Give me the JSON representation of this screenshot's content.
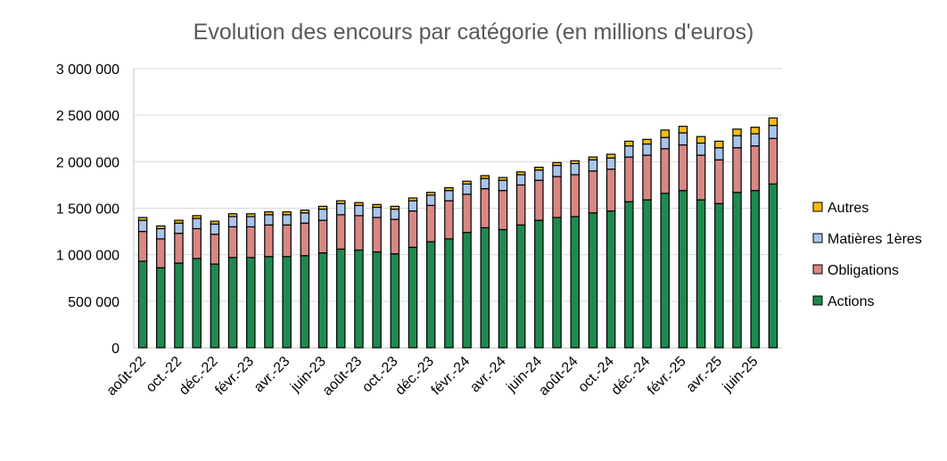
{
  "chart_data": {
    "type": "bar",
    "stacked": true,
    "title": "Evolution des encours par catégorie (en millions d'euros)",
    "xlabel": "",
    "ylabel": "",
    "ylim": [
      0,
      3000000
    ],
    "y_ticks": [
      0,
      500000,
      1000000,
      1500000,
      2000000,
      2500000,
      3000000
    ],
    "y_tick_labels": [
      "0",
      "500 000",
      "1 000 000",
      "1 500 000",
      "2 000 000",
      "2 500 000",
      "3 000 000"
    ],
    "grid": true,
    "legend_position": "right",
    "categories": [
      "août-22",
      "sept.-22",
      "oct.-22",
      "nov.-22",
      "déc.-22",
      "janv.-23",
      "févr.-23",
      "mars-23",
      "avr.-23",
      "mai-23",
      "juin-23",
      "juil.-23",
      "août-23",
      "sept.-23",
      "oct.-23",
      "nov.-23",
      "déc.-23",
      "janv.-24",
      "févr.-24",
      "mars-24",
      "avr.-24",
      "mai-24",
      "juin-24",
      "juil.-24",
      "août-24",
      "sept.-24",
      "oct.-24",
      "nov.-24",
      "déc.-24",
      "janv.-25",
      "févr.-25",
      "mars-25",
      "avr.-25",
      "mai-25",
      "juin-25",
      "juil.-25"
    ],
    "shown_x_labels": [
      "août-22",
      "oct.-22",
      "déc.-22",
      "févr.-23",
      "avr.-23",
      "juin-23",
      "août-23",
      "oct.-23",
      "déc.-23",
      "févr.-24",
      "avr.-24",
      "juin-24",
      "août-24",
      "oct.-24",
      "déc.-24",
      "févr.-25",
      "avr.-25",
      "juin-25"
    ],
    "series": [
      {
        "name": "Actions",
        "color": "#1e8a50",
        "values": [
          930000,
          860000,
          910000,
          960000,
          900000,
          970000,
          970000,
          980000,
          980000,
          990000,
          1020000,
          1060000,
          1050000,
          1030000,
          1010000,
          1080000,
          1140000,
          1170000,
          1240000,
          1290000,
          1270000,
          1320000,
          1370000,
          1400000,
          1410000,
          1450000,
          1470000,
          1570000,
          1590000,
          1660000,
          1690000,
          1590000,
          1550000,
          1670000,
          1690000,
          1760000
        ]
      },
      {
        "name": "Obligations",
        "color": "#d88783",
        "values": [
          320000,
          310000,
          320000,
          320000,
          320000,
          330000,
          330000,
          340000,
          340000,
          350000,
          350000,
          370000,
          370000,
          370000,
          370000,
          390000,
          390000,
          410000,
          410000,
          420000,
          420000,
          430000,
          430000,
          440000,
          450000,
          450000,
          450000,
          480000,
          480000,
          480000,
          490000,
          480000,
          470000,
          480000,
          480000,
          490000
        ]
      },
      {
        "name": "Matières 1ères",
        "color": "#a9c4ea",
        "values": [
          120000,
          110000,
          110000,
          110000,
          110000,
          110000,
          110000,
          110000,
          110000,
          110000,
          120000,
          120000,
          110000,
          110000,
          110000,
          110000,
          110000,
          110000,
          110000,
          110000,
          110000,
          110000,
          110000,
          120000,
          120000,
          120000,
          120000,
          120000,
          120000,
          120000,
          130000,
          130000,
          130000,
          130000,
          130000,
          140000
        ]
      },
      {
        "name": "Autres",
        "color": "#f5bd12",
        "values": [
          30000,
          30000,
          30000,
          30000,
          30000,
          30000,
          30000,
          30000,
          30000,
          30000,
          30000,
          30000,
          30000,
          30000,
          30000,
          30000,
          30000,
          30000,
          30000,
          30000,
          30000,
          30000,
          30000,
          30000,
          30000,
          30000,
          40000,
          50000,
          50000,
          80000,
          70000,
          70000,
          70000,
          70000,
          70000,
          80000
        ]
      }
    ]
  }
}
